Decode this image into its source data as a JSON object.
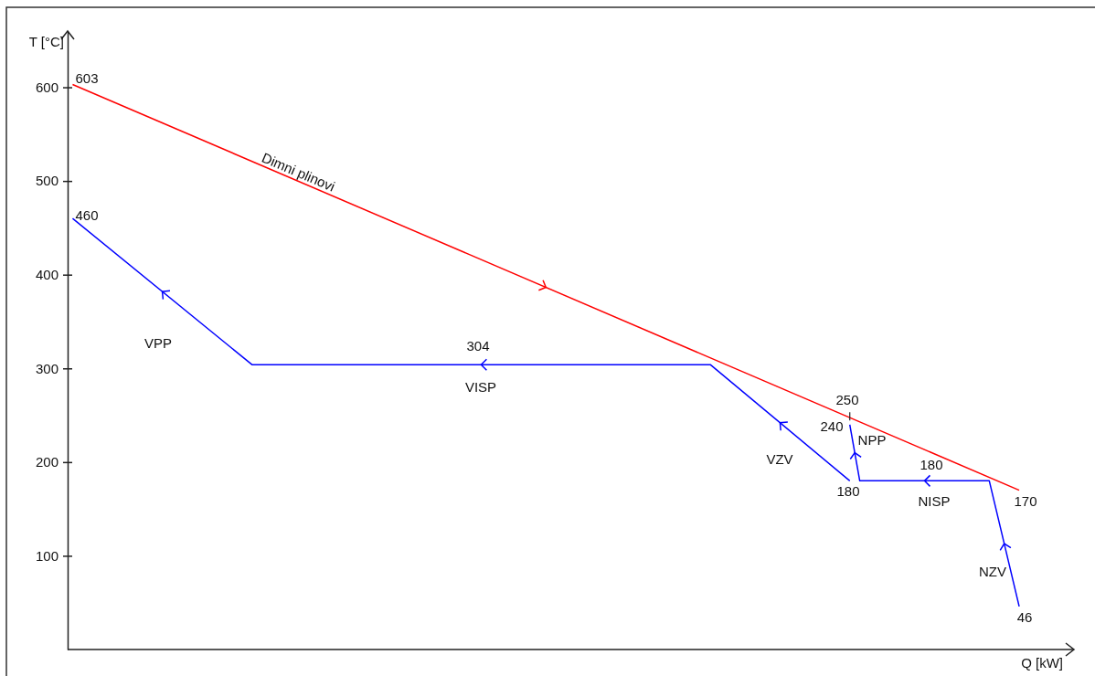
{
  "chart_data": {
    "type": "line",
    "xlabel": "Q [kW]",
    "ylabel": "T [°C]",
    "ylim": [
      0,
      660
    ],
    "yticks": [
      100,
      200,
      300,
      400,
      500,
      600
    ],
    "tick_labels": "y",
    "legend": false,
    "marker": "none",
    "line_style": "solid",
    "categories": [
      null,
      null,
      null,
      null,
      null,
      null,
      null,
      null,
      null,
      null,
      null,
      null,
      null,
      null,
      null,
      null,
      null,
      null,
      null,
      null,
      null,
      null,
      null,
      null,
      null,
      null,
      null,
      null,
      null,
      null,
      null,
      null,
      null,
      null,
      null,
      null,
      null,
      null,
      null,
      null,
      null,
      null,
      null,
      null,
      null,
      null,
      null,
      null,
      null,
      null,
      null,
      null,
      null,
      null,
      null,
      null,
      null,
      null,
      null,
      null,
      null,
      null,
      null,
      null,
      null,
      null,
      null,
      null,
      null,
      null,
      null,
      null,
      null,
      null,
      null,
      null,
      null,
      null,
      null,
      null,
      null,
      null,
      null,
      null,
      null,
      null,
      null,
      null,
      null,
      null,
      null,
      null,
      null,
      null,
      null,
      null,
      null,
      null,
      null,
      null,
      null
    ],
    "series": [
      {
        "name": "Dimni plinovi",
        "color": "#ff0000",
        "values": [
          603,
          null,
          null,
          null,
          null,
          null,
          null,
          null,
          null,
          null,
          null,
          null,
          null,
          null,
          null,
          null,
          null,
          null,
          null,
          null,
          null,
          null,
          null,
          null,
          null,
          null,
          null,
          null,
          null,
          null,
          null,
          null,
          null,
          null,
          null,
          null,
          null,
          null,
          null,
          null,
          null,
          null,
          null,
          null,
          null,
          null,
          null,
          null,
          null,
          null,
          null,
          null,
          null,
          null,
          null,
          null,
          null,
          null,
          null,
          null,
          null,
          null,
          null,
          null,
          null,
          null,
          null,
          null,
          null,
          null,
          null,
          null,
          null,
          null,
          null,
          null,
          null,
          null,
          null,
          null,
          null,
          null,
          null,
          null,
          null,
          null,
          null,
          null,
          null,
          null,
          null,
          null,
          null,
          null,
          null,
          170,
          null,
          null,
          null,
          null,
          null
        ]
      },
      {
        "color": "#0000ff",
        "values": [
          460,
          null,
          null,
          null,
          null,
          null,
          null,
          null,
          null,
          null,
          null,
          null,
          null,
          null,
          null,
          null,
          null,
          null,
          304,
          null,
          null,
          null,
          null,
          null,
          null,
          null,
          null,
          null,
          null,
          null,
          null,
          null,
          null,
          null,
          null,
          null,
          null,
          null,
          null,
          null,
          null,
          null,
          null,
          null,
          null,
          null,
          null,
          null,
          null,
          null,
          null,
          null,
          null,
          null,
          null,
          null,
          null,
          null,
          null,
          null,
          null,
          null,
          null,
          null,
          304,
          null,
          null,
          null,
          null,
          null,
          null,
          null,
          null,
          null,
          null,
          null,
          null,
          null,
          180,
          null,
          null,
          null,
          null,
          null,
          null,
          null,
          null,
          null,
          null,
          null,
          null,
          null,
          null,
          null,
          null,
          null,
          null,
          null,
          null,
          null,
          null
        ]
      },
      {
        "color": "#0000ff",
        "values": [
          null,
          null,
          null,
          null,
          null,
          null,
          null,
          null,
          null,
          null,
          null,
          null,
          null,
          null,
          null,
          null,
          null,
          null,
          null,
          null,
          null,
          null,
          null,
          null,
          null,
          null,
          null,
          null,
          null,
          null,
          null,
          null,
          null,
          null,
          null,
          null,
          null,
          null,
          null,
          null,
          null,
          null,
          null,
          null,
          null,
          null,
          null,
          null,
          null,
          null,
          null,
          null,
          null,
          null,
          null,
          null,
          null,
          null,
          null,
          null,
          null,
          null,
          null,
          null,
          null,
          null,
          null,
          null,
          null,
          null,
          null,
          null,
          null,
          null,
          null,
          null,
          null,
          null,
          240,
          180,
          null,
          null,
          null,
          null,
          null,
          null,
          null,
          null,
          null,
          null,
          null,
          null,
          180,
          null,
          null,
          46,
          null,
          null,
          null,
          null,
          null
        ]
      }
    ],
    "annotations": [
      "603",
      "460",
      "304",
      "250",
      "240",
      "180",
      "180",
      "170",
      "46",
      "VPP",
      "VISP",
      "VZV",
      "NPP",
      "NISP",
      "NZV"
    ]
  }
}
